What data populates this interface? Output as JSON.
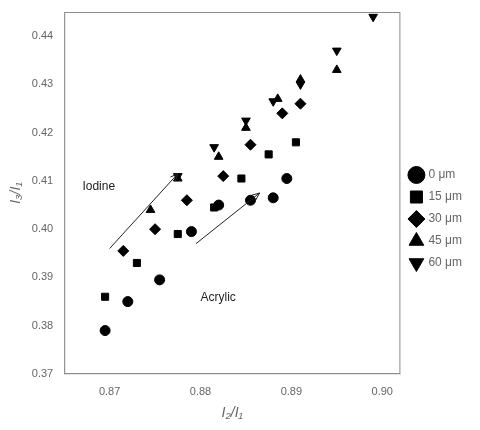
{
  "chart_data": {
    "type": "scatter",
    "xlabel": "I₂/I₁",
    "ylabel": "I₃/I₁",
    "color": "black",
    "grid": false,
    "legend": "right",
    "series": [
      {
        "name": "0 μm",
        "marker": "circle",
        "x": [
          0.8695,
          0.872,
          0.8755,
          0.879,
          0.882,
          0.8855,
          0.888,
          0.8895
        ],
        "values": [
          0.379,
          0.385,
          0.3895,
          0.3995,
          0.405,
          0.406,
          0.4065,
          0.4105
        ]
      },
      {
        "name": "15 μm",
        "marker": "square",
        "x": [
          0.8695,
          0.873,
          0.8775,
          0.8815,
          0.8845,
          0.8875,
          0.8905
        ],
        "values": [
          0.386,
          0.393,
          0.399,
          0.4045,
          0.4105,
          0.4155,
          0.418
        ]
      },
      {
        "name": "30 μm",
        "marker": "diamond",
        "x": [
          0.8715,
          0.875,
          0.8785,
          0.8825,
          0.8855,
          0.889,
          0.891
        ],
        "values": [
          0.3955,
          0.4,
          0.406,
          0.411,
          0.4175,
          0.424,
          0.426
        ]
      },
      {
        "name": "45 μm",
        "marker": "triangle-up",
        "x": [
          0.8745,
          0.8775,
          0.882,
          0.885,
          0.8885,
          0.891,
          0.895
        ],
        "values": [
          0.404,
          0.4105,
          0.415,
          0.421,
          0.427,
          0.431,
          0.433
        ]
      },
      {
        "name": "60 μm",
        "marker": "triangle-down",
        "x": [
          0.8775,
          0.8815,
          0.885,
          0.888,
          0.891,
          0.895,
          0.899
        ],
        "values": [
          0.411,
          0.417,
          0.4225,
          0.4265,
          0.43,
          0.437,
          0.444
        ]
      }
    ],
    "xlim": [
      0.865,
      0.902
    ],
    "ylim": [
      0.37,
      0.445
    ],
    "xticks": [
      0.87,
      0.88,
      0.89,
      {
        "value": 0.9,
        "label": "0.90"
      }
    ],
    "yticks": [
      0.37,
      0.38,
      0.39,
      {
        "value": 0.4,
        "label": "0.40"
      },
      0.41,
      0.42,
      0.43,
      0.44
    ],
    "annotations": [
      {
        "text": "Iodine",
        "x": 0.867,
        "y": 0.4075,
        "arrow_from": [
          0.87,
          0.396
        ],
        "arrow_to": [
          0.8775,
          0.4115
        ]
      },
      {
        "text": "Acrylic",
        "x": 0.88,
        "y": 0.387,
        "arrow_from": [
          0.8795,
          0.397
        ],
        "arrow_to": [
          0.8865,
          0.4075
        ]
      }
    ]
  }
}
